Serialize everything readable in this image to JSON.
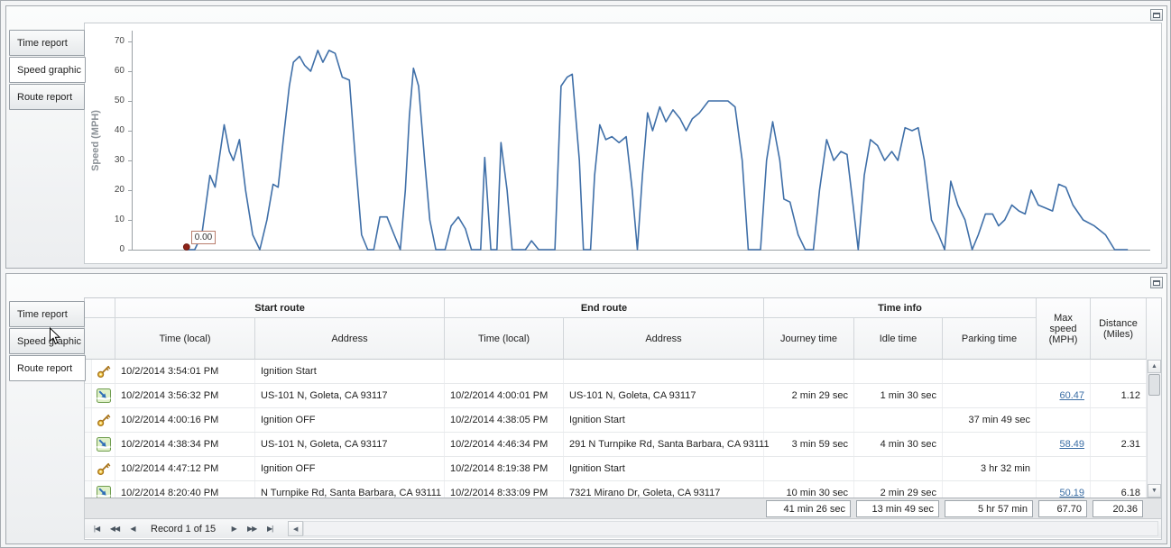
{
  "icons": {
    "up_arrow": "▲",
    "down_arrow": "▼",
    "left_arrow": "◀",
    "right_arrow": "▶"
  },
  "top_panel": {
    "tabs": [
      {
        "label": "Time report",
        "selected": false
      },
      {
        "label": "Speed graphic",
        "selected": true
      },
      {
        "label": "Route report",
        "selected": false
      }
    ]
  },
  "chart_data": {
    "type": "line",
    "title": "",
    "ylabel": "Speed (MPH)",
    "xlabel": "",
    "ylim": [
      0,
      70
    ],
    "yticks": [
      0,
      10,
      20,
      30,
      40,
      50,
      60,
      70
    ],
    "grid": false,
    "legend": "none",
    "line_color": "#3f6fa8",
    "marker_color": "#8f2318",
    "annotation": {
      "label": "0.00",
      "x": 0.053,
      "value": 0
    },
    "x_format": "normalized 0-1 across plot width (no x tick labels visible)",
    "points": [
      [
        0.053,
        0
      ],
      [
        0.061,
        0
      ],
      [
        0.068,
        5
      ],
      [
        0.076,
        25
      ],
      [
        0.081,
        21
      ],
      [
        0.09,
        42
      ],
      [
        0.095,
        33
      ],
      [
        0.099,
        30
      ],
      [
        0.105,
        37
      ],
      [
        0.111,
        20
      ],
      [
        0.118,
        5
      ],
      [
        0.125,
        0
      ],
      [
        0.132,
        10
      ],
      [
        0.138,
        22
      ],
      [
        0.143,
        21
      ],
      [
        0.149,
        40
      ],
      [
        0.154,
        55
      ],
      [
        0.158,
        63
      ],
      [
        0.164,
        65
      ],
      [
        0.169,
        62
      ],
      [
        0.175,
        60
      ],
      [
        0.182,
        67
      ],
      [
        0.187,
        63
      ],
      [
        0.193,
        67
      ],
      [
        0.199,
        66
      ],
      [
        0.206,
        58
      ],
      [
        0.213,
        57
      ],
      [
        0.219,
        30
      ],
      [
        0.225,
        5
      ],
      [
        0.231,
        0
      ],
      [
        0.237,
        0
      ],
      [
        0.243,
        11
      ],
      [
        0.25,
        11
      ],
      [
        0.257,
        5
      ],
      [
        0.263,
        0
      ],
      [
        0.268,
        20
      ],
      [
        0.272,
        45
      ],
      [
        0.276,
        61
      ],
      [
        0.281,
        55
      ],
      [
        0.287,
        30
      ],
      [
        0.292,
        10
      ],
      [
        0.298,
        0
      ],
      [
        0.307,
        0
      ],
      [
        0.313,
        8
      ],
      [
        0.32,
        11
      ],
      [
        0.327,
        7
      ],
      [
        0.333,
        0
      ],
      [
        0.342,
        0
      ],
      [
        0.346,
        31
      ],
      [
        0.352,
        0
      ],
      [
        0.358,
        0
      ],
      [
        0.362,
        36
      ],
      [
        0.368,
        20
      ],
      [
        0.373,
        0
      ],
      [
        0.386,
        0
      ],
      [
        0.392,
        3
      ],
      [
        0.399,
        0
      ],
      [
        0.415,
        0
      ],
      [
        0.421,
        55
      ],
      [
        0.427,
        58
      ],
      [
        0.432,
        59
      ],
      [
        0.439,
        30
      ],
      [
        0.443,
        0
      ],
      [
        0.45,
        0
      ],
      [
        0.454,
        25
      ],
      [
        0.459,
        42
      ],
      [
        0.465,
        37
      ],
      [
        0.471,
        38
      ],
      [
        0.478,
        36
      ],
      [
        0.485,
        38
      ],
      [
        0.491,
        20
      ],
      [
        0.496,
        0
      ],
      [
        0.501,
        25
      ],
      [
        0.506,
        46
      ],
      [
        0.511,
        40
      ],
      [
        0.518,
        48
      ],
      [
        0.524,
        43
      ],
      [
        0.531,
        47
      ],
      [
        0.538,
        44
      ],
      [
        0.544,
        40
      ],
      [
        0.55,
        44
      ],
      [
        0.557,
        46
      ],
      [
        0.566,
        50
      ],
      [
        0.575,
        50
      ],
      [
        0.585,
        50
      ],
      [
        0.592,
        48
      ],
      [
        0.599,
        30
      ],
      [
        0.605,
        0
      ],
      [
        0.617,
        0
      ],
      [
        0.623,
        30
      ],
      [
        0.629,
        43
      ],
      [
        0.636,
        30
      ],
      [
        0.64,
        17
      ],
      [
        0.646,
        16
      ],
      [
        0.654,
        5
      ],
      [
        0.661,
        0
      ],
      [
        0.669,
        0
      ],
      [
        0.675,
        20
      ],
      [
        0.682,
        37
      ],
      [
        0.689,
        30
      ],
      [
        0.696,
        33
      ],
      [
        0.702,
        32
      ],
      [
        0.708,
        15
      ],
      [
        0.713,
        0
      ],
      [
        0.719,
        25
      ],
      [
        0.725,
        37
      ],
      [
        0.732,
        35
      ],
      [
        0.739,
        30
      ],
      [
        0.746,
        33
      ],
      [
        0.752,
        30
      ],
      [
        0.759,
        41
      ],
      [
        0.766,
        40
      ],
      [
        0.772,
        41
      ],
      [
        0.778,
        30
      ],
      [
        0.785,
        10
      ],
      [
        0.792,
        5
      ],
      [
        0.798,
        0
      ],
      [
        0.804,
        23
      ],
      [
        0.811,
        15
      ],
      [
        0.818,
        10
      ],
      [
        0.825,
        0
      ],
      [
        0.831,
        5
      ],
      [
        0.838,
        12
      ],
      [
        0.845,
        12
      ],
      [
        0.851,
        8
      ],
      [
        0.857,
        10
      ],
      [
        0.864,
        15
      ],
      [
        0.871,
        13
      ],
      [
        0.877,
        12
      ],
      [
        0.883,
        20
      ],
      [
        0.89,
        15
      ],
      [
        0.897,
        14
      ],
      [
        0.904,
        13
      ],
      [
        0.91,
        22
      ],
      [
        0.917,
        21
      ],
      [
        0.924,
        15
      ],
      [
        0.934,
        10
      ],
      [
        0.945,
        8
      ],
      [
        0.956,
        5
      ],
      [
        0.965,
        0
      ],
      [
        0.978,
        0
      ]
    ]
  },
  "bottom_panel": {
    "tabs": [
      {
        "label": "Time report",
        "selected": false
      },
      {
        "label": "Speed graphic",
        "selected": false
      },
      {
        "label": "Route report",
        "selected": true
      }
    ],
    "table": {
      "band_headers": [
        {
          "label": "Start route"
        },
        {
          "label": "End route"
        },
        {
          "label": "Time info"
        }
      ],
      "column_headers": [
        "Time (local)",
        "Address",
        "Time (local)",
        "Address",
        "Journey time",
        "Idle time",
        "Parking time",
        "Max speed (MPH)",
        "Distance (Miles)"
      ],
      "rows": [
        {
          "icon": "key",
          "start_time": "10/2/2014 3:54:01 PM",
          "start_address": "Ignition Start",
          "end_time": "",
          "end_address": "",
          "journey_time": "",
          "idle_time": "",
          "parking_time": "",
          "max_speed": "",
          "distance": ""
        },
        {
          "icon": "route",
          "start_time": "10/2/2014 3:56:32 PM",
          "start_address": "US-101 N, Goleta, CA 93117",
          "end_time": "10/2/2014 4:00:01 PM",
          "end_address": "US-101 N, Goleta, CA 93117",
          "journey_time": "2 min 29 sec",
          "idle_time": "1 min 30 sec",
          "parking_time": "",
          "max_speed": "60.47",
          "distance": "1.12"
        },
        {
          "icon": "key",
          "start_time": "10/2/2014 4:00:16 PM",
          "start_address": "Ignition OFF",
          "end_time": "10/2/2014 4:38:05 PM",
          "end_address": "Ignition Start",
          "journey_time": "",
          "idle_time": "",
          "parking_time": "37 min 49 sec",
          "max_speed": "",
          "distance": ""
        },
        {
          "icon": "route",
          "start_time": "10/2/2014 4:38:34 PM",
          "start_address": "US-101 N, Goleta, CA 93117",
          "end_time": "10/2/2014 4:46:34 PM",
          "end_address": "291 N Turnpike Rd, Santa Barbara, CA 93111",
          "journey_time": "3 min 59 sec",
          "idle_time": "4 min 30 sec",
          "parking_time": "",
          "max_speed": "58.49",
          "distance": "2.31"
        },
        {
          "icon": "key",
          "start_time": "10/2/2014 4:47:12 PM",
          "start_address": "Ignition OFF",
          "end_time": "10/2/2014 8:19:38 PM",
          "end_address": "Ignition Start",
          "journey_time": "",
          "idle_time": "",
          "parking_time": "3 hr 32 min",
          "max_speed": "",
          "distance": ""
        },
        {
          "icon": "route",
          "start_time": "10/2/2014 8:20:40 PM",
          "start_address": "N Turnpike Rd, Santa Barbara, CA 93111",
          "end_time": "10/2/2014 8:33:09 PM",
          "end_address": "7321 Mirano Dr, Goleta, CA 93117",
          "journey_time": "10 min 30 sec",
          "idle_time": "2 min 29 sec",
          "parking_time": "",
          "max_speed": "50.19",
          "distance": "6.18"
        }
      ],
      "summary": {
        "journey_time": "41 min 26 sec",
        "idle_time": "13 min 49 sec",
        "parking_time": "5 hr 57 min",
        "max_speed": "67.70",
        "distance": "20.36"
      },
      "navigator": {
        "record_text": "Record 1 of 15",
        "buttons": [
          {
            "name": "first-record-button",
            "glyph": "|◀"
          },
          {
            "name": "prev-page-button",
            "glyph": "◀◀"
          },
          {
            "name": "prev-record-button",
            "glyph": "◀"
          },
          {
            "name": "next-record-button",
            "glyph": "▶"
          },
          {
            "name": "next-page-button",
            "glyph": "▶▶"
          },
          {
            "name": "last-record-button",
            "glyph": "▶|"
          }
        ]
      }
    }
  }
}
